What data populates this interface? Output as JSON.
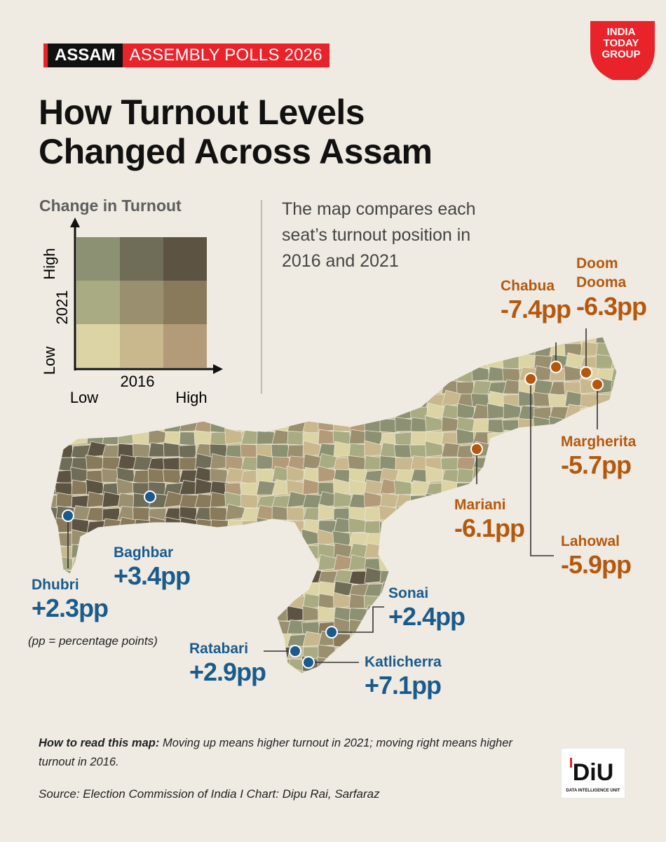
{
  "header": {
    "tag_state": "ASSAM",
    "tag_title": "ASSEMBLY POLLS 2026",
    "logo_text": [
      "INDIA",
      "TODAY",
      "GROUP"
    ]
  },
  "title_lines": [
    "How Turnout Levels",
    "Changed Across Assam"
  ],
  "legend": {
    "title": "Change in Turnout",
    "y_axis": "2021",
    "x_axis": "2016",
    "y_high": "High",
    "y_low": "Low",
    "x_low": "Low",
    "x_high": "High",
    "grid_colors": [
      [
        "#8b9172",
        "#6f6d58",
        "#5c5343"
      ],
      [
        "#a9ac82",
        "#9a9070",
        "#897a5c"
      ],
      [
        "#ddd4a6",
        "#c9b88e",
        "#b39a78"
      ]
    ]
  },
  "description": "The map compares each seat’s turnout position in 2016 and 2021",
  "callouts": [
    {
      "id": "chabua",
      "name": "Chabua",
      "value": "-7.4pp",
      "color": "orange"
    },
    {
      "id": "doom-dooma",
      "name": "Doom\nDooma",
      "value": "-6.3pp",
      "color": "orange"
    },
    {
      "id": "margherita",
      "name": "Margherita",
      "value": "-5.7pp",
      "color": "orange"
    },
    {
      "id": "mariani",
      "name": "Mariani",
      "value": "-6.1pp",
      "color": "orange"
    },
    {
      "id": "lahowal",
      "name": "Lahowal",
      "value": "-5.9pp",
      "color": "orange"
    },
    {
      "id": "baghbar",
      "name": "Baghbar",
      "value": "+3.4pp",
      "color": "blue"
    },
    {
      "id": "dhubri",
      "name": "Dhubri",
      "value": "+2.3pp",
      "color": "blue"
    },
    {
      "id": "sonai",
      "name": "Sonai",
      "value": "+2.4pp",
      "color": "blue"
    },
    {
      "id": "ratabari",
      "name": "Ratabari",
      "value": "+2.9pp",
      "color": "blue"
    },
    {
      "id": "katlicherra",
      "name": "Katlicherra",
      "value": "+7.1pp",
      "color": "blue"
    }
  ],
  "note": "(pp = percentage points)",
  "footer": {
    "how_to_label": "How to read this map:",
    "how_to_text": " Moving up means higher turnout in 2021; moving right means higher turnout in 2016.",
    "source": "Source: Election Commission of India I Chart: Dipu Rai, Sarfaraz",
    "diu_logo": "DiU",
    "diu_sub": "DATA INTELLIGENCE UNIT"
  },
  "colors": {
    "orange": "#b5580d",
    "blue": "#1a5b8c",
    "red": "#e8232a",
    "background": "#efebe3"
  }
}
